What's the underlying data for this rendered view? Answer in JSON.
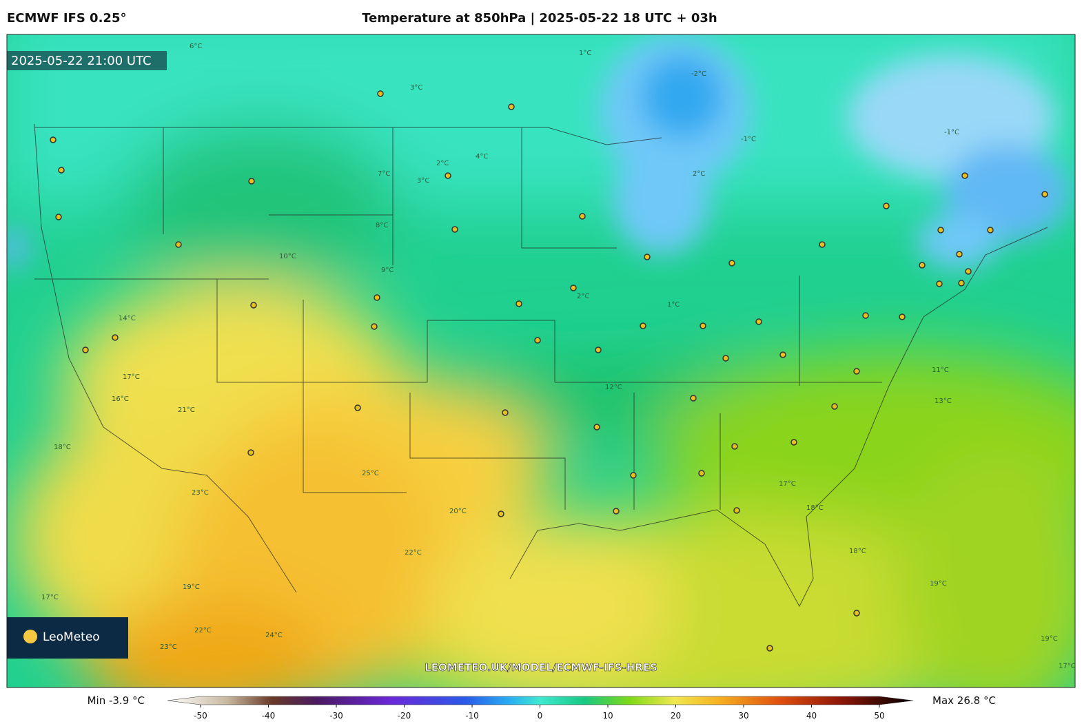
{
  "header": {
    "model": "ECMWF IFS 0.25°",
    "title": "Temperature at 850hPa | 2025-05-22 18 UTC + 03h"
  },
  "map": {
    "valid_time": "2025-05-22 21:00 UTC",
    "logo": "LeoMeteo",
    "watermark": "LEOMETEO.UK/MODEL/ECMWF-IFS-HRES",
    "contour_labels": [
      "6°C",
      "3°C",
      "1°C",
      "4°C",
      "2°C",
      "3°C",
      "-1°C",
      "2°C",
      "-1°C",
      "1°C",
      "-2°C",
      "2°C",
      "7°C",
      "8°C",
      "10°C",
      "9°C",
      "14°C",
      "17°C",
      "16°C",
      "18°C",
      "23°C",
      "21°C",
      "25°C",
      "22°C",
      "24°C",
      "19°C",
      "20°C",
      "12°C",
      "11°C",
      "13°C",
      "18°C",
      "17°C",
      "18°C",
      "19°C",
      "17°C",
      "22°C",
      "23°C",
      "19°C",
      "17°C"
    ]
  },
  "colorbar": {
    "min_label": "Min -3.9 °C",
    "max_label": "Max 26.8 °C",
    "range": [
      -50,
      50
    ],
    "ticks": [
      -50,
      -40,
      -30,
      -20,
      -10,
      0,
      10,
      20,
      30,
      40,
      50
    ]
  }
}
